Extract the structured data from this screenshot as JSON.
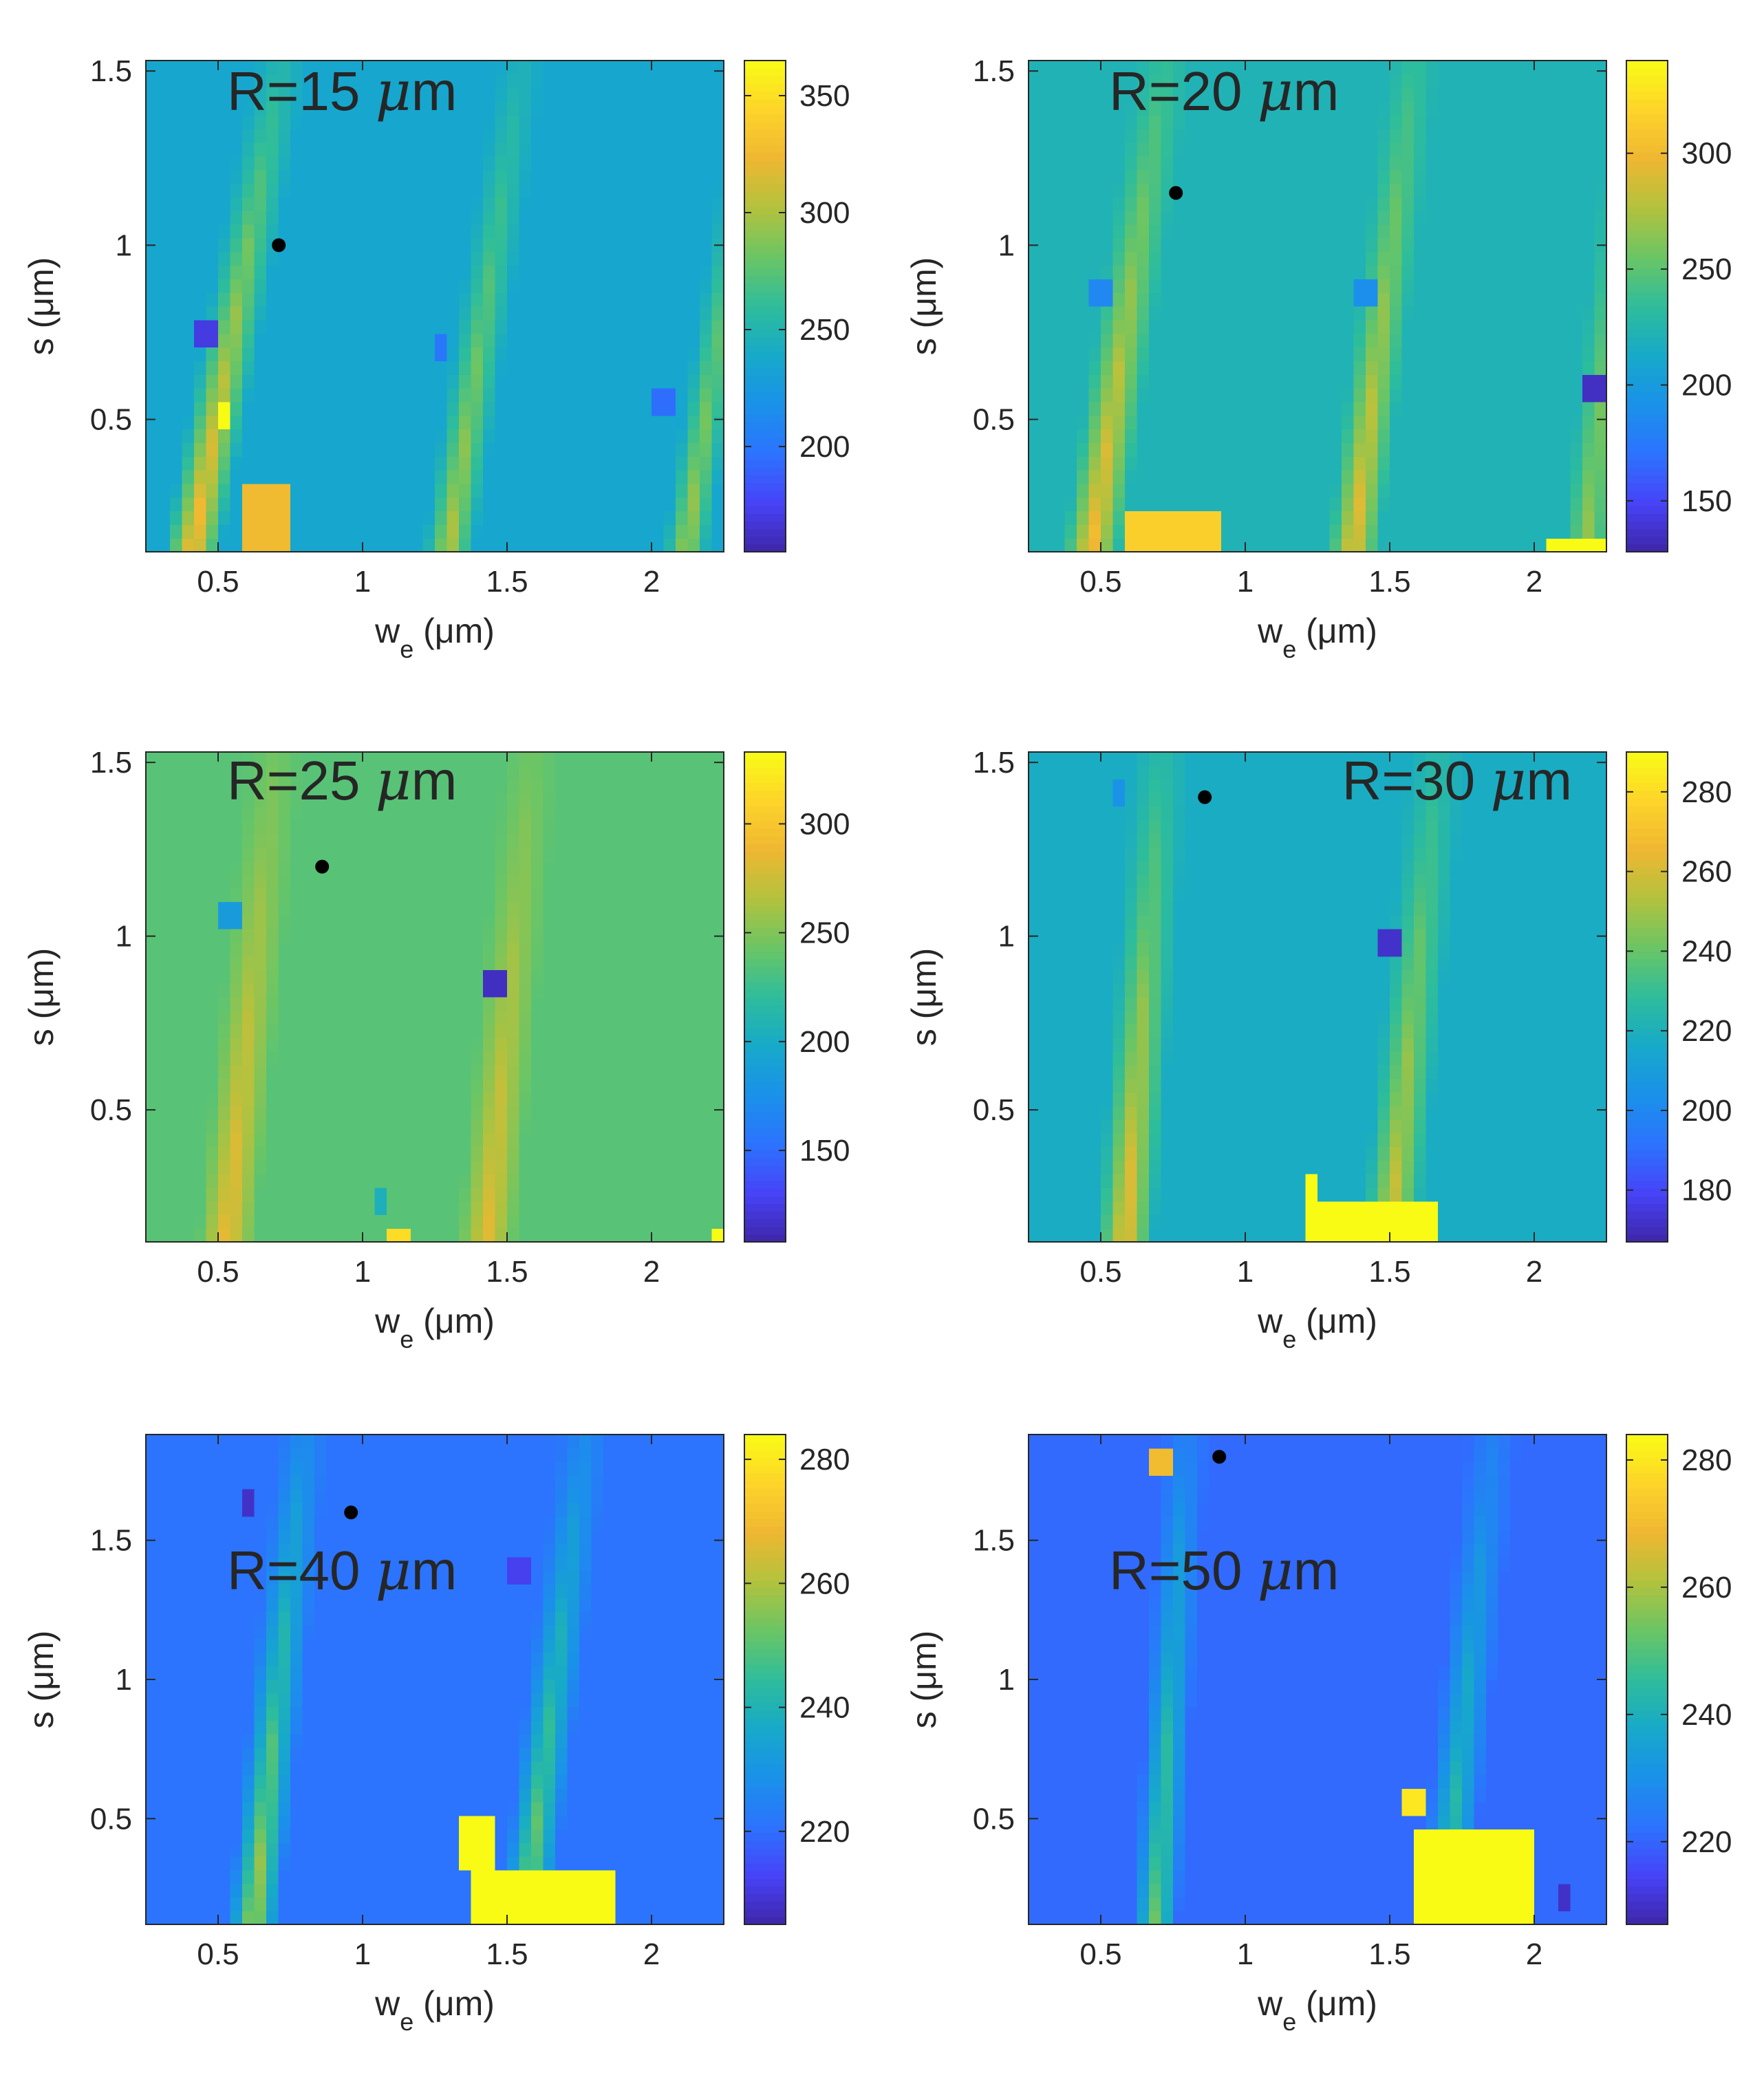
{
  "figure": {
    "colormap_name": "parula",
    "colormap": [
      "#3e26a8",
      "#4743f8",
      "#2c73fe",
      "#1a91e9",
      "#17a9c9",
      "#2ebd9b",
      "#6bc565",
      "#b2c23e",
      "#efb732",
      "#fed42a",
      "#f9fb15"
    ],
    "panel_bg_hints": {
      "R15": "#17a0cf",
      "R20": "#1eafc2",
      "R25": "#3dbb9c",
      "R30": "#1cadc6",
      "R40": "#1e66e2",
      "R50": "#1566e3"
    },
    "marker_color": "#000000"
  },
  "chart_data": [
    {
      "id": "R15",
      "type": "heatmap",
      "title": "R=15 μm",
      "title_parts": {
        "prefix": "R=15 ",
        "mu": "μ",
        "unit": "m"
      },
      "xlabel": "w_e (μm)",
      "xlabel_parts": {
        "w": "w",
        "sub": "e",
        "unit": " (μm)"
      },
      "ylabel": "s (μm)",
      "xlim": [
        0.25,
        2.25
      ],
      "ylim": [
        0.12,
        1.53
      ],
      "xticks": [
        0.5,
        1,
        1.5,
        2
      ],
      "xticklabels": [
        "0.5",
        "1",
        "1.5",
        "2"
      ],
      "yticks": [
        0.5,
        1,
        1.5
      ],
      "yticklabels": [
        "0.5",
        "1",
        "1.5"
      ],
      "clim": [
        155,
        365
      ],
      "cticks": [
        200,
        250,
        300,
        350
      ],
      "cticklabels": [
        "200",
        "250",
        "300",
        "350"
      ],
      "background_value": 236,
      "ridges": [
        {
          "x": 0.45,
          "slope": 0.22,
          "peak": 335,
          "width": 0.1
        },
        {
          "x": 1.33,
          "slope": 0.18,
          "peak": 305,
          "width": 0.09
        },
        {
          "x": 2.15,
          "slope": 0.18,
          "peak": 300,
          "width": 0.08
        }
      ],
      "hot_patches": [
        {
          "x0": 0.58,
          "x1": 0.77,
          "y0": 0.12,
          "y1": 0.32,
          "value": 325
        },
        {
          "x0": 0.5,
          "x1": 0.55,
          "y0": 0.48,
          "y1": 0.57,
          "value": 365
        }
      ],
      "cold_cells": [
        {
          "x": 0.45,
          "y": 0.75,
          "value": 170
        },
        {
          "x": 1.27,
          "y": 0.7,
          "value": 200
        },
        {
          "x": 2.05,
          "y": 0.55,
          "value": 195
        }
      ],
      "marker": {
        "x": 0.71,
        "y": 1.0
      }
    },
    {
      "id": "R20",
      "type": "heatmap",
      "title": "R=20 μm",
      "title_parts": {
        "prefix": "R=20 ",
        "mu": "μ",
        "unit": "m"
      },
      "xlabel": "w_e (μm)",
      "xlabel_parts": {
        "w": "w",
        "sub": "e",
        "unit": " (μm)"
      },
      "ylabel": "s (μm)",
      "xlim": [
        0.25,
        2.25
      ],
      "ylim": [
        0.12,
        1.53
      ],
      "xticks": [
        0.5,
        1,
        1.5,
        2
      ],
      "xticklabels": [
        "0.5",
        "1",
        "1.5",
        "2"
      ],
      "yticks": [
        0.5,
        1,
        1.5
      ],
      "yticklabels": [
        "0.5",
        "1",
        "1.5"
      ],
      "clim": [
        128,
        340
      ],
      "cticks": [
        150,
        200,
        250,
        300
      ],
      "cticklabels": [
        "150",
        "200",
        "250",
        "300"
      ],
      "background_value": 222,
      "ridges": [
        {
          "x": 0.5,
          "slope": 0.18,
          "peak": 305,
          "width": 0.1
        },
        {
          "x": 1.4,
          "slope": 0.15,
          "peak": 300,
          "width": 0.09
        },
        {
          "x": 2.2,
          "slope": 0.12,
          "peak": 270,
          "width": 0.08
        }
      ],
      "hot_patches": [
        {
          "x0": 0.6,
          "x1": 0.93,
          "y0": 0.12,
          "y1": 0.23,
          "value": 315
        },
        {
          "x0": 2.04,
          "x1": 2.24,
          "y0": 0.12,
          "y1": 0.17,
          "value": 340
        }
      ],
      "cold_cells": [
        {
          "x": 0.51,
          "y": 0.88,
          "value": 185
        },
        {
          "x": 1.42,
          "y": 0.85,
          "value": 190
        },
        {
          "x": 2.22,
          "y": 0.6,
          "value": 135
        }
      ],
      "marker": {
        "x": 0.76,
        "y": 1.15
      }
    },
    {
      "id": "R25",
      "type": "heatmap",
      "title": "R=25 μm",
      "title_parts": {
        "prefix": "R=25 ",
        "mu": "μ",
        "unit": "m"
      },
      "xlabel": "w_e (μm)",
      "xlabel_parts": {
        "w": "w",
        "sub": "e",
        "unit": " (μm)"
      },
      "ylabel": "s (μm)",
      "xlim": [
        0.25,
        2.25
      ],
      "ylim": [
        0.12,
        1.53
      ],
      "xticks": [
        0.5,
        1,
        1.5,
        2
      ],
      "xticklabels": [
        "0.5",
        "1",
        "1.5",
        "2"
      ],
      "yticks": [
        0.5,
        1,
        1.5
      ],
      "yticklabels": [
        "0.5",
        "1",
        "1.5"
      ],
      "clim": [
        108,
        333
      ],
      "cticks": [
        150,
        200,
        250,
        300
      ],
      "cticklabels": [
        "150",
        "200",
        "250",
        "300"
      ],
      "background_value": 236,
      "ridges": [
        {
          "x": 0.55,
          "slope": 0.12,
          "peak": 290,
          "width": 0.1
        },
        {
          "x": 1.45,
          "slope": 0.11,
          "peak": 285,
          "width": 0.1
        }
      ],
      "hot_patches": [
        {
          "x0": 1.08,
          "x1": 1.16,
          "y0": 0.12,
          "y1": 0.17,
          "value": 315
        },
        {
          "x0": 2.21,
          "x1": 2.25,
          "y0": 0.12,
          "y1": 0.17,
          "value": 333
        }
      ],
      "cold_cells": [
        {
          "x": 0.55,
          "y": 1.05,
          "value": 185
        },
        {
          "x": 1.45,
          "y": 0.85,
          "value": 115
        },
        {
          "x": 1.07,
          "y": 0.22,
          "value": 205
        }
      ],
      "marker": {
        "x": 0.86,
        "y": 1.2
      }
    },
    {
      "id": "R30",
      "type": "heatmap",
      "title": "R=30 μm",
      "title_parts": {
        "prefix": "R=30 ",
        "mu": "μ",
        "unit": "m"
      },
      "xlabel": "w_e (μm)",
      "xlabel_parts": {
        "w": "w",
        "sub": "e",
        "unit": " (μm)"
      },
      "ylabel": "s (μm)",
      "xlim": [
        0.25,
        2.25
      ],
      "ylim": [
        0.12,
        1.53
      ],
      "xticks": [
        0.5,
        1,
        1.5,
        2
      ],
      "xticklabels": [
        "0.5",
        "1",
        "1.5",
        "2"
      ],
      "yticks": [
        0.5,
        1,
        1.5
      ],
      "yticklabels": [
        "0.5",
        "1",
        "1.5"
      ],
      "clim": [
        167,
        290
      ],
      "cticks": [
        180,
        200,
        220,
        240,
        260,
        280
      ],
      "cticklabels": [
        "180",
        "200",
        "220",
        "240",
        "260",
        "280"
      ],
      "background_value": 218,
      "ridges": [
        {
          "x": 0.6,
          "slope": 0.09,
          "peak": 268,
          "width": 0.1
        },
        {
          "x": 1.52,
          "slope": 0.12,
          "peak": 262,
          "width": 0.1
        }
      ],
      "hot_patches": [
        {
          "x0": 1.2,
          "x1": 1.68,
          "y0": 0.12,
          "y1": 0.24,
          "value": 290
        },
        {
          "x0": 1.2,
          "x1": 1.25,
          "y0": 0.24,
          "y1": 0.32,
          "value": 290
        }
      ],
      "cold_cells": [
        {
          "x": 1.5,
          "y": 1.0,
          "value": 172
        },
        {
          "x": 0.56,
          "y": 1.4,
          "value": 205
        }
      ],
      "marker": {
        "x": 0.86,
        "y": 1.4
      }
    },
    {
      "id": "R40",
      "type": "heatmap",
      "title": "R=40 μm",
      "title_parts": {
        "prefix": "R=40 ",
        "mu": "μ",
        "unit": "m"
      },
      "xlabel": "w_e (μm)",
      "xlabel_parts": {
        "w": "w",
        "sub": "e",
        "unit": " (μm)"
      },
      "ylabel": "s (μm)",
      "xlim": [
        0.25,
        2.25
      ],
      "ylim": [
        0.12,
        1.88
      ],
      "xticks": [
        0.5,
        1,
        1.5,
        2
      ],
      "xticklabels": [
        "0.5",
        "1",
        "1.5",
        "2"
      ],
      "yticks": [
        0.5,
        1,
        1.5
      ],
      "yticklabels": [
        "0.5",
        "1",
        "1.5"
      ],
      "clim": [
        205,
        284
      ],
      "cticks": [
        220,
        240,
        260,
        280
      ],
      "cticklabels": [
        "220",
        "240",
        "260",
        "280"
      ],
      "background_value": 221,
      "ridges": [
        {
          "x": 0.64,
          "slope": 0.1,
          "peak": 262,
          "width": 0.09
        },
        {
          "x": 1.58,
          "slope": 0.12,
          "peak": 258,
          "width": 0.09
        }
      ],
      "hot_patches": [
        {
          "x0": 1.38,
          "x1": 1.86,
          "y0": 0.12,
          "y1": 0.3,
          "value": 284
        },
        {
          "x0": 1.35,
          "x1": 1.45,
          "y0": 0.3,
          "y1": 0.53,
          "value": 284
        }
      ],
      "cold_cells": [
        {
          "x": 0.61,
          "y": 1.65,
          "value": 208
        },
        {
          "x": 1.55,
          "y": 1.4,
          "value": 212
        }
      ],
      "marker": {
        "x": 0.96,
        "y": 1.6
      }
    },
    {
      "id": "R50",
      "type": "heatmap",
      "title": "R=50 μm",
      "title_parts": {
        "prefix": "R=50 ",
        "mu": "μ",
        "unit": "m"
      },
      "xlabel": "w_e (μm)",
      "xlabel_parts": {
        "w": "w",
        "sub": "e",
        "unit": " (μm)"
      },
      "ylabel": "s (μm)",
      "xlim": [
        0.25,
        2.25
      ],
      "ylim": [
        0.12,
        1.88
      ],
      "xticks": [
        0.5,
        1,
        1.5,
        2
      ],
      "xticklabels": [
        "0.5",
        "1",
        "1.5",
        "2"
      ],
      "yticks": [
        0.5,
        1,
        1.5
      ],
      "yticklabels": [
        "0.5",
        "1",
        "1.5"
      ],
      "clim": [
        207,
        284
      ],
      "cticks": [
        220,
        240,
        260,
        280
      ],
      "cticklabels": [
        "220",
        "240",
        "260",
        "280"
      ],
      "background_value": 221,
      "ridges": [
        {
          "x": 0.7,
          "slope": 0.06,
          "peak": 255,
          "width": 0.08
        },
        {
          "x": 1.7,
          "slope": 0.1,
          "peak": 250,
          "width": 0.09
        }
      ],
      "hot_patches": [
        {
          "x0": 1.6,
          "x1": 2.0,
          "y0": 0.12,
          "y1": 0.45,
          "value": 284
        },
        {
          "x0": 1.55,
          "x1": 1.62,
          "y0": 0.5,
          "y1": 0.63,
          "value": 280
        }
      ],
      "cold_cells": [
        {
          "x": 0.7,
          "y": 1.76,
          "value": 270
        },
        {
          "x": 2.1,
          "y": 0.2,
          "value": 210
        }
      ],
      "marker": {
        "x": 0.91,
        "y": 1.8
      }
    }
  ]
}
